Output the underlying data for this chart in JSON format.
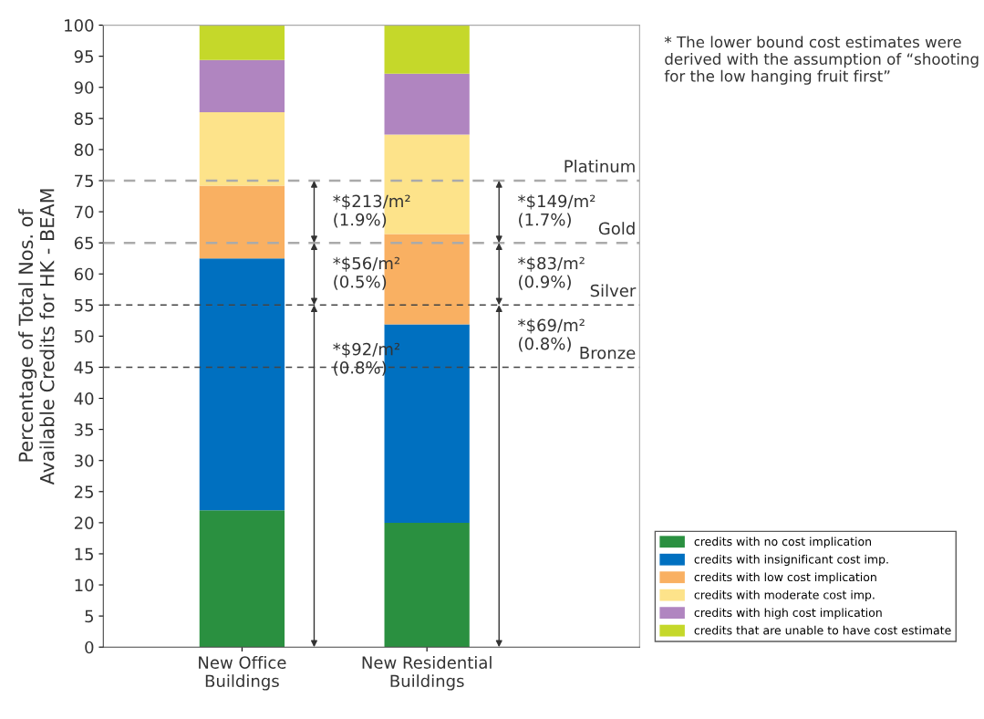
{
  "chart_data": {
    "type": "bar",
    "stacked": true,
    "ylabel": "Percentage of Total Nos. of\nAvailable Credits for HK - BEAM",
    "categories": [
      "New Office\nBuildings",
      "New Residential\nBuildings"
    ],
    "series": [
      {
        "name": "credits with no cost implication",
        "color": "#2a9040",
        "values": [
          22,
          20
        ]
      },
      {
        "name": "credits with insignificant cost imp.",
        "color": "#0070c0",
        "values": [
          40.5,
          31.9
        ]
      },
      {
        "name": "credits with low cost implication",
        "color": "#f9b062",
        "values": [
          11.7,
          14.5
        ]
      },
      {
        "name": "credits with moderate cost imp.",
        "color": "#fde38a",
        "values": [
          11.8,
          16
        ]
      },
      {
        "name": "credits with high cost implication",
        "color": "#b085c0",
        "values": [
          8.4,
          9.8
        ]
      },
      {
        "name": "credits that are unable to have cost estimate",
        "color": "#c5d82a",
        "values": [
          5.6,
          7.8
        ]
      }
    ],
    "ylim": [
      0,
      100
    ],
    "yticks": [
      0,
      5,
      10,
      15,
      20,
      25,
      30,
      35,
      40,
      45,
      50,
      55,
      60,
      65,
      70,
      75,
      80,
      85,
      90,
      95,
      100
    ],
    "ref_lines": [
      {
        "axis": "y",
        "value": 45,
        "label": "Bronze",
        "color": "#444444",
        "line_style": "dashed"
      },
      {
        "axis": "y",
        "value": 55,
        "label": "Silver",
        "color": "#444444",
        "line_style": "dashed"
      },
      {
        "axis": "y",
        "value": 65,
        "label": "Gold",
        "color": "#aaaaaa",
        "line_style": "dashed"
      },
      {
        "axis": "y",
        "value": 75,
        "label": "Platinum",
        "color": "#aaaaaa",
        "line_style": "dashed"
      }
    ],
    "annotations": [
      {
        "text": "*$92/m²\n(0.8%)",
        "y": 55
      },
      {
        "text": "*$56/m²\n(0.5%)",
        "y": 65
      },
      {
        "text": "*$213/m²\n(1.9%)",
        "y": 75
      },
      {
        "text": "*$69/m²\n(0.8%)",
        "y": 55
      },
      {
        "text": "*$83/m²\n(0.9%)",
        "y": 65
      },
      {
        "text": "*$149/m²\n(1.7%)",
        "y": 75
      },
      "* The lower bound cost estimates were derived with the assumption of “shooting for the low hanging fruit first”"
    ],
    "grid": false,
    "legend": "right"
  }
}
